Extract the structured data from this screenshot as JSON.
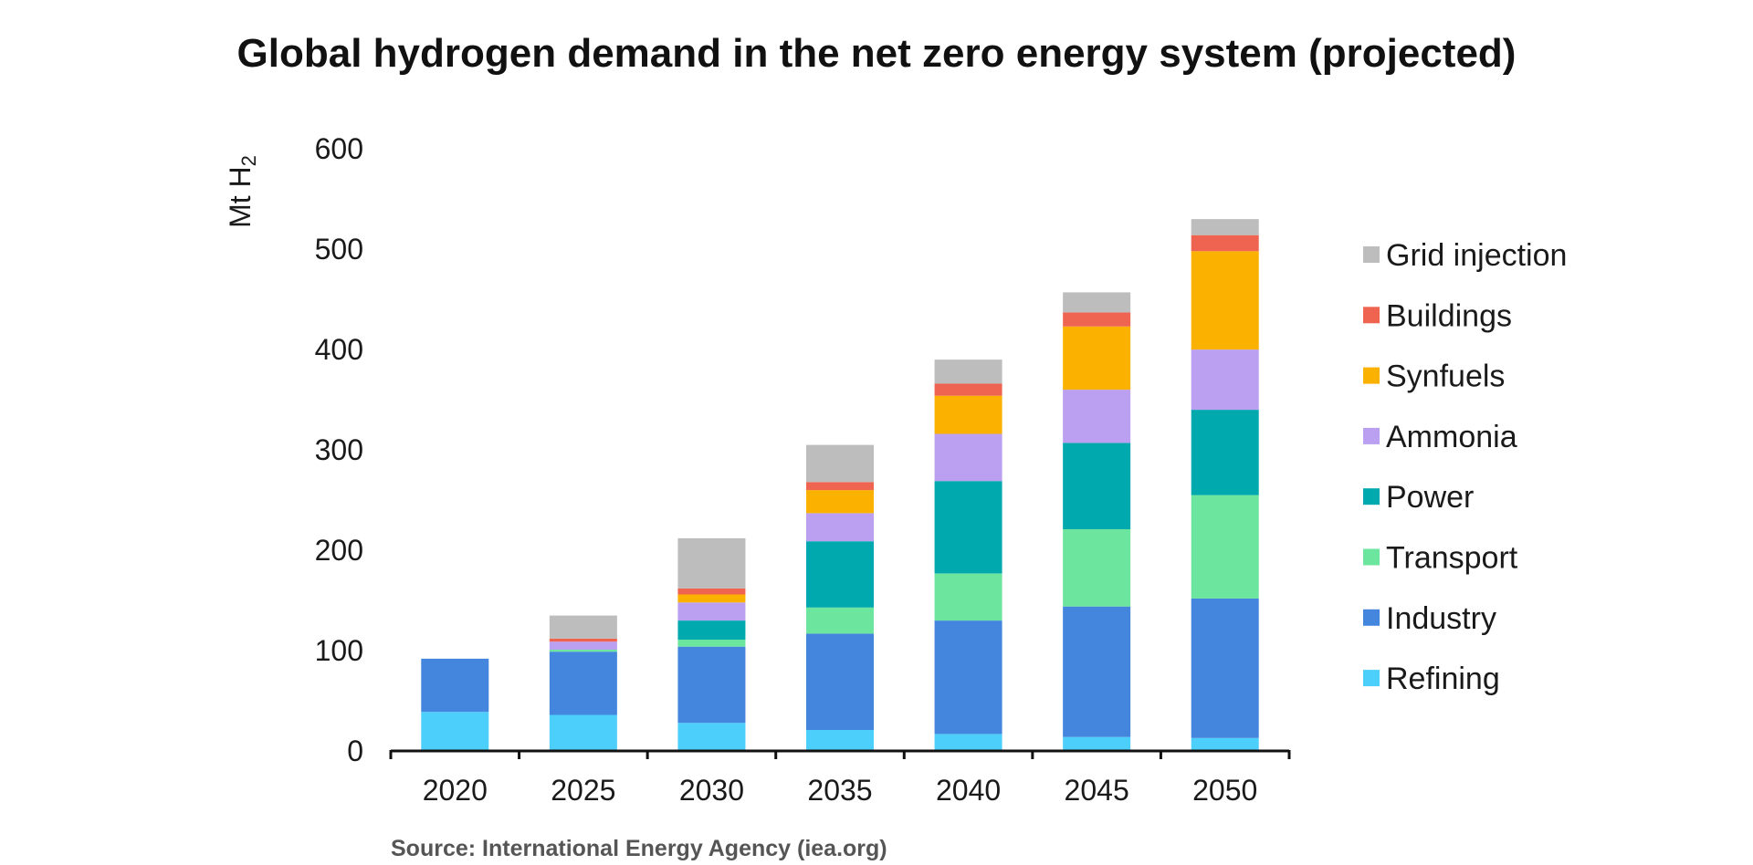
{
  "source": "Source: International Energy Agency (iea.org)",
  "chart_data": {
    "type": "bar",
    "stacked": true,
    "title": "Global hydrogen demand in the net zero energy system (projected)",
    "ylabel": "Mt H",
    "ylabel_subscript": "2",
    "xlabel": "",
    "ylim": [
      0,
      600
    ],
    "yticks": [
      0,
      100,
      200,
      300,
      400,
      500,
      600
    ],
    "categories": [
      "2020",
      "2025",
      "2030",
      "2035",
      "2040",
      "2045",
      "2050"
    ],
    "legend_position": "right",
    "grid": false,
    "series": [
      {
        "name": "Refining",
        "color": "#4dcffb",
        "values": [
          38,
          35,
          27,
          20,
          16,
          13,
          12
        ]
      },
      {
        "name": "Industry",
        "color": "#4485dd",
        "values": [
          53,
          63,
          76,
          96,
          113,
          130,
          139
        ]
      },
      {
        "name": "Transport",
        "color": "#6ce59e",
        "values": [
          0,
          2,
          7,
          26,
          47,
          77,
          103
        ]
      },
      {
        "name": "Power",
        "color": "#00a9ad",
        "values": [
          0,
          0,
          19,
          66,
          92,
          86,
          85
        ]
      },
      {
        "name": "Ammonia",
        "color": "#bb9ff1",
        "values": [
          0,
          8,
          18,
          28,
          47,
          53,
          60
        ]
      },
      {
        "name": "Synfuels",
        "color": "#fbb100",
        "values": [
          0,
          0,
          8,
          23,
          38,
          63,
          98
        ]
      },
      {
        "name": "Buildings",
        "color": "#ef6450",
        "values": [
          0,
          3,
          6,
          8,
          12,
          14,
          16
        ]
      },
      {
        "name": "Grid injection",
        "color": "#bdbdbd",
        "values": [
          0,
          23,
          50,
          37,
          24,
          20,
          16
        ]
      }
    ]
  }
}
